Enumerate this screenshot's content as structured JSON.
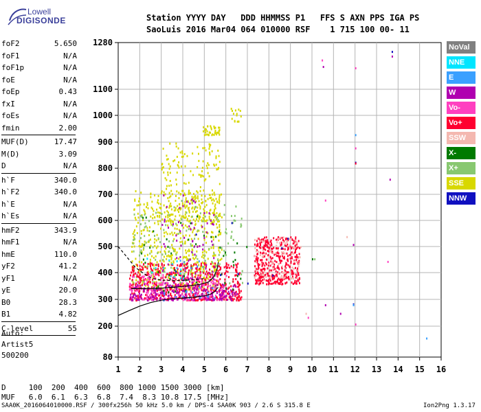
{
  "logo": {
    "line1": "Lowell",
    "line2": "DIGISONDE"
  },
  "header": {
    "line1": "Station YYYY DAY   DDD HHMMSS P1   FFS S AXN PPS IGA PS",
    "line2": "SaoLuis 2016 Mar04 064 010000 RSF    1 715 100 00- 11"
  },
  "params": {
    "group1": [
      {
        "name": "foF2",
        "value": "5.650"
      },
      {
        "name": "foF1",
        "value": "N/A"
      },
      {
        "name": "foF1p",
        "value": "N/A"
      },
      {
        "name": "foE",
        "value": "N/A"
      },
      {
        "name": "foEp",
        "value": "0.43"
      },
      {
        "name": "fxI",
        "value": "N/A"
      },
      {
        "name": "foEs",
        "value": "N/A"
      },
      {
        "name": "fmin",
        "value": "2.00"
      }
    ],
    "group2": [
      {
        "name": "MUF(D)",
        "value": "17.47"
      },
      {
        "name": "M(D)",
        "value": "3.09"
      },
      {
        "name": "D",
        "value": "N/A"
      }
    ],
    "group3": [
      {
        "name": "h`F",
        "value": "340.0"
      },
      {
        "name": "h`F2",
        "value": "340.0"
      },
      {
        "name": "h`E",
        "value": "N/A"
      },
      {
        "name": "h`Es",
        "value": "N/A"
      }
    ],
    "group4": [
      {
        "name": "hmF2",
        "value": "343.9"
      },
      {
        "name": "hmF1",
        "value": "N/A"
      },
      {
        "name": "hmE",
        "value": "110.0"
      },
      {
        "name": "yF2",
        "value": "41.2"
      },
      {
        "name": "yF1",
        "value": "N/A"
      },
      {
        "name": "yE",
        "value": "20.0"
      },
      {
        "name": "B0",
        "value": "28.3"
      },
      {
        "name": "B1",
        "value": "4.82"
      }
    ],
    "group5": [
      {
        "name": "C-level",
        "value": "55"
      }
    ]
  },
  "auto": {
    "line1": "Auto:",
    "line2": "Artist5",
    "line3": "500200"
  },
  "footer": {
    "d_row": "D     100  200  400  600  800 1000 1500 3000 [km]",
    "muf_row": "MUF   6.0  6.1  6.3  6.8  7.4  8.3 10.8 17.5 [MHz]",
    "file_row": "SAA0K_2016064010000.RSF / 300fx256h 50 kHz 5.0 km / DPS-4 SAA0K 903 / 2.6 S 315.8 E",
    "version": "Ion2Png 1.3.17"
  },
  "legend": [
    {
      "label": "NoVal",
      "color": "#808080"
    },
    {
      "label": "NNE",
      "color": "#00e5ff"
    },
    {
      "label": "E",
      "color": "#3aa0ff"
    },
    {
      "label": "W",
      "color": "#b000b0"
    },
    {
      "label": "Vo-",
      "color": "#ff40c0"
    },
    {
      "label": "Vo+",
      "color": "#ff0030"
    },
    {
      "label": "SSW",
      "color": "#f4b8b0"
    },
    {
      "label": "X-",
      "color": "#007a00"
    },
    {
      "label": "X+",
      "color": "#88c870"
    },
    {
      "label": "SSE",
      "color": "#d8d800"
    },
    {
      "label": "NNW",
      "color": "#1010c0"
    }
  ],
  "chart_data": {
    "type": "scatter",
    "xticks": [
      "1",
      "2",
      "3",
      "4",
      "5",
      "6",
      "7",
      "8",
      "9",
      "10",
      "11",
      "12",
      "13",
      "14",
      "15",
      "16"
    ],
    "yticks": [
      "80",
      "200",
      "300",
      "400",
      "500",
      "600",
      "700",
      "800",
      "900",
      "1000",
      "1100",
      "1280"
    ],
    "x_tick_values": [
      1,
      2,
      3,
      4,
      5,
      6,
      7,
      8,
      9,
      10,
      11,
      12,
      13,
      14,
      15,
      16
    ],
    "y_tick_values": [
      80,
      200,
      300,
      400,
      500,
      600,
      700,
      800,
      900,
      1000,
      1100,
      1280
    ],
    "xlim": [
      1,
      16
    ],
    "ylim": [
      80,
      1280
    ],
    "grid": true,
    "clusters": [
      {
        "category": "SSE",
        "xmin": 1.6,
        "xmax": 5.8,
        "ymin": 340,
        "ymax": 720,
        "n": 600
      },
      {
        "category": "SSE",
        "xmin": 2.9,
        "xmax": 5.7,
        "ymin": 600,
        "ymax": 900,
        "n": 220
      },
      {
        "category": "SSE",
        "xmin": 4.9,
        "xmax": 5.7,
        "ymin": 930,
        "ymax": 965,
        "n": 40
      },
      {
        "category": "SSE",
        "xmin": 6.2,
        "xmax": 6.7,
        "ymin": 980,
        "ymax": 1030,
        "n": 15
      },
      {
        "category": "X+",
        "xmin": 1.6,
        "xmax": 6.8,
        "ymin": 350,
        "ymax": 680,
        "n": 160
      },
      {
        "category": "Vo+",
        "xmin": 1.5,
        "xmax": 6.7,
        "ymin": 300,
        "ymax": 440,
        "n": 520
      },
      {
        "category": "Vo+",
        "xmin": 7.3,
        "xmax": 9.4,
        "ymin": 360,
        "ymax": 540,
        "n": 420
      },
      {
        "category": "Vo-",
        "xmin": 1.5,
        "xmax": 6.0,
        "ymin": 300,
        "ymax": 400,
        "n": 250
      },
      {
        "category": "W",
        "xmin": 1.5,
        "xmax": 6.5,
        "ymin": 300,
        "ymax": 360,
        "n": 200
      },
      {
        "category": "W",
        "xmin": 3.0,
        "xmax": 5.5,
        "ymin": 360,
        "ymax": 700,
        "n": 80
      },
      {
        "category": "X-",
        "xmin": 2.0,
        "xmax": 7.0,
        "ymin": 330,
        "ymax": 620,
        "n": 50
      },
      {
        "category": "SSW",
        "xmin": 7.3,
        "xmax": 9.5,
        "ymin": 380,
        "ymax": 540,
        "n": 100
      },
      {
        "category": "E",
        "xmin": 3.0,
        "xmax": 5.5,
        "ymin": 300,
        "ymax": 450,
        "n": 25
      },
      {
        "category": "NNE",
        "xmin": 2.0,
        "xmax": 4.0,
        "ymin": 380,
        "ymax": 500,
        "n": 12
      },
      {
        "category": "NNW",
        "xmin": 3.0,
        "xmax": 9.0,
        "ymin": 350,
        "ymax": 600,
        "n": 10
      }
    ],
    "isolated_points": [
      {
        "x": 10.5,
        "y": 1190,
        "category": "W"
      },
      {
        "x": 10.45,
        "y": 1215,
        "category": "Vo-"
      },
      {
        "x": 12.0,
        "y": 1185,
        "category": "Vo-"
      },
      {
        "x": 13.7,
        "y": 1248,
        "category": "NNW"
      },
      {
        "x": 13.7,
        "y": 1230,
        "category": "W"
      },
      {
        "x": 12.0,
        "y": 930,
        "category": "E"
      },
      {
        "x": 12.0,
        "y": 880,
        "category": "Vo-"
      },
      {
        "x": 12.0,
        "y": 825,
        "category": "NNW"
      },
      {
        "x": 12.0,
        "y": 822,
        "category": "Vo+"
      },
      {
        "x": 13.6,
        "y": 760,
        "category": "W"
      },
      {
        "x": 10.6,
        "y": 680,
        "category": "Vo-"
      },
      {
        "x": 11.6,
        "y": 540,
        "category": "SSW"
      },
      {
        "x": 11.9,
        "y": 510,
        "category": "W"
      },
      {
        "x": 10.0,
        "y": 455,
        "category": "X-"
      },
      {
        "x": 10.1,
        "y": 455,
        "category": "X+"
      },
      {
        "x": 13.5,
        "y": 445,
        "category": "Vo-"
      },
      {
        "x": 10.6,
        "y": 282,
        "category": "W"
      },
      {
        "x": 11.9,
        "y": 285,
        "category": "NNW"
      },
      {
        "x": 11.9,
        "y": 282,
        "category": "E"
      },
      {
        "x": 11.3,
        "y": 250,
        "category": "W"
      },
      {
        "x": 12.0,
        "y": 210,
        "category": "Vo-"
      },
      {
        "x": 9.7,
        "y": 250,
        "category": "SSW"
      },
      {
        "x": 9.8,
        "y": 235,
        "category": "Vo-"
      },
      {
        "x": 15.3,
        "y": 156,
        "category": "E"
      }
    ],
    "profile_curves": [
      {
        "name": "solid",
        "color": "#000000",
        "dashed": false,
        "points": [
          [
            1,
            240
          ],
          [
            1.5,
            258
          ],
          [
            2,
            275
          ],
          [
            2.5,
            288
          ],
          [
            3,
            297
          ],
          [
            3.5,
            302
          ],
          [
            4,
            305
          ],
          [
            4.5,
            308
          ],
          [
            5,
            313
          ],
          [
            5.3,
            320
          ],
          [
            5.5,
            330
          ],
          [
            5.6,
            342
          ],
          [
            5.65,
            344
          ]
        ]
      },
      {
        "name": "solid2",
        "color": "#000000",
        "dashed": false,
        "points": [
          [
            1.6,
            340
          ],
          [
            2.2,
            340
          ],
          [
            3,
            342
          ],
          [
            4,
            348
          ],
          [
            4.8,
            356
          ],
          [
            5.2,
            365
          ],
          [
            5.45,
            385
          ],
          [
            5.6,
            415
          ],
          [
            5.65,
            440
          ]
        ]
      },
      {
        "name": "dashed",
        "color": "#000000",
        "dashed": true,
        "points": [
          [
            1,
            500
          ],
          [
            1.2,
            480
          ],
          [
            1.5,
            450
          ],
          [
            1.8,
            420
          ],
          [
            2.2,
            395
          ],
          [
            2.6,
            378
          ],
          [
            3,
            372
          ],
          [
            3.5,
            370
          ],
          [
            4,
            371
          ],
          [
            4.5,
            373
          ],
          [
            5,
            378
          ]
        ]
      }
    ]
  }
}
